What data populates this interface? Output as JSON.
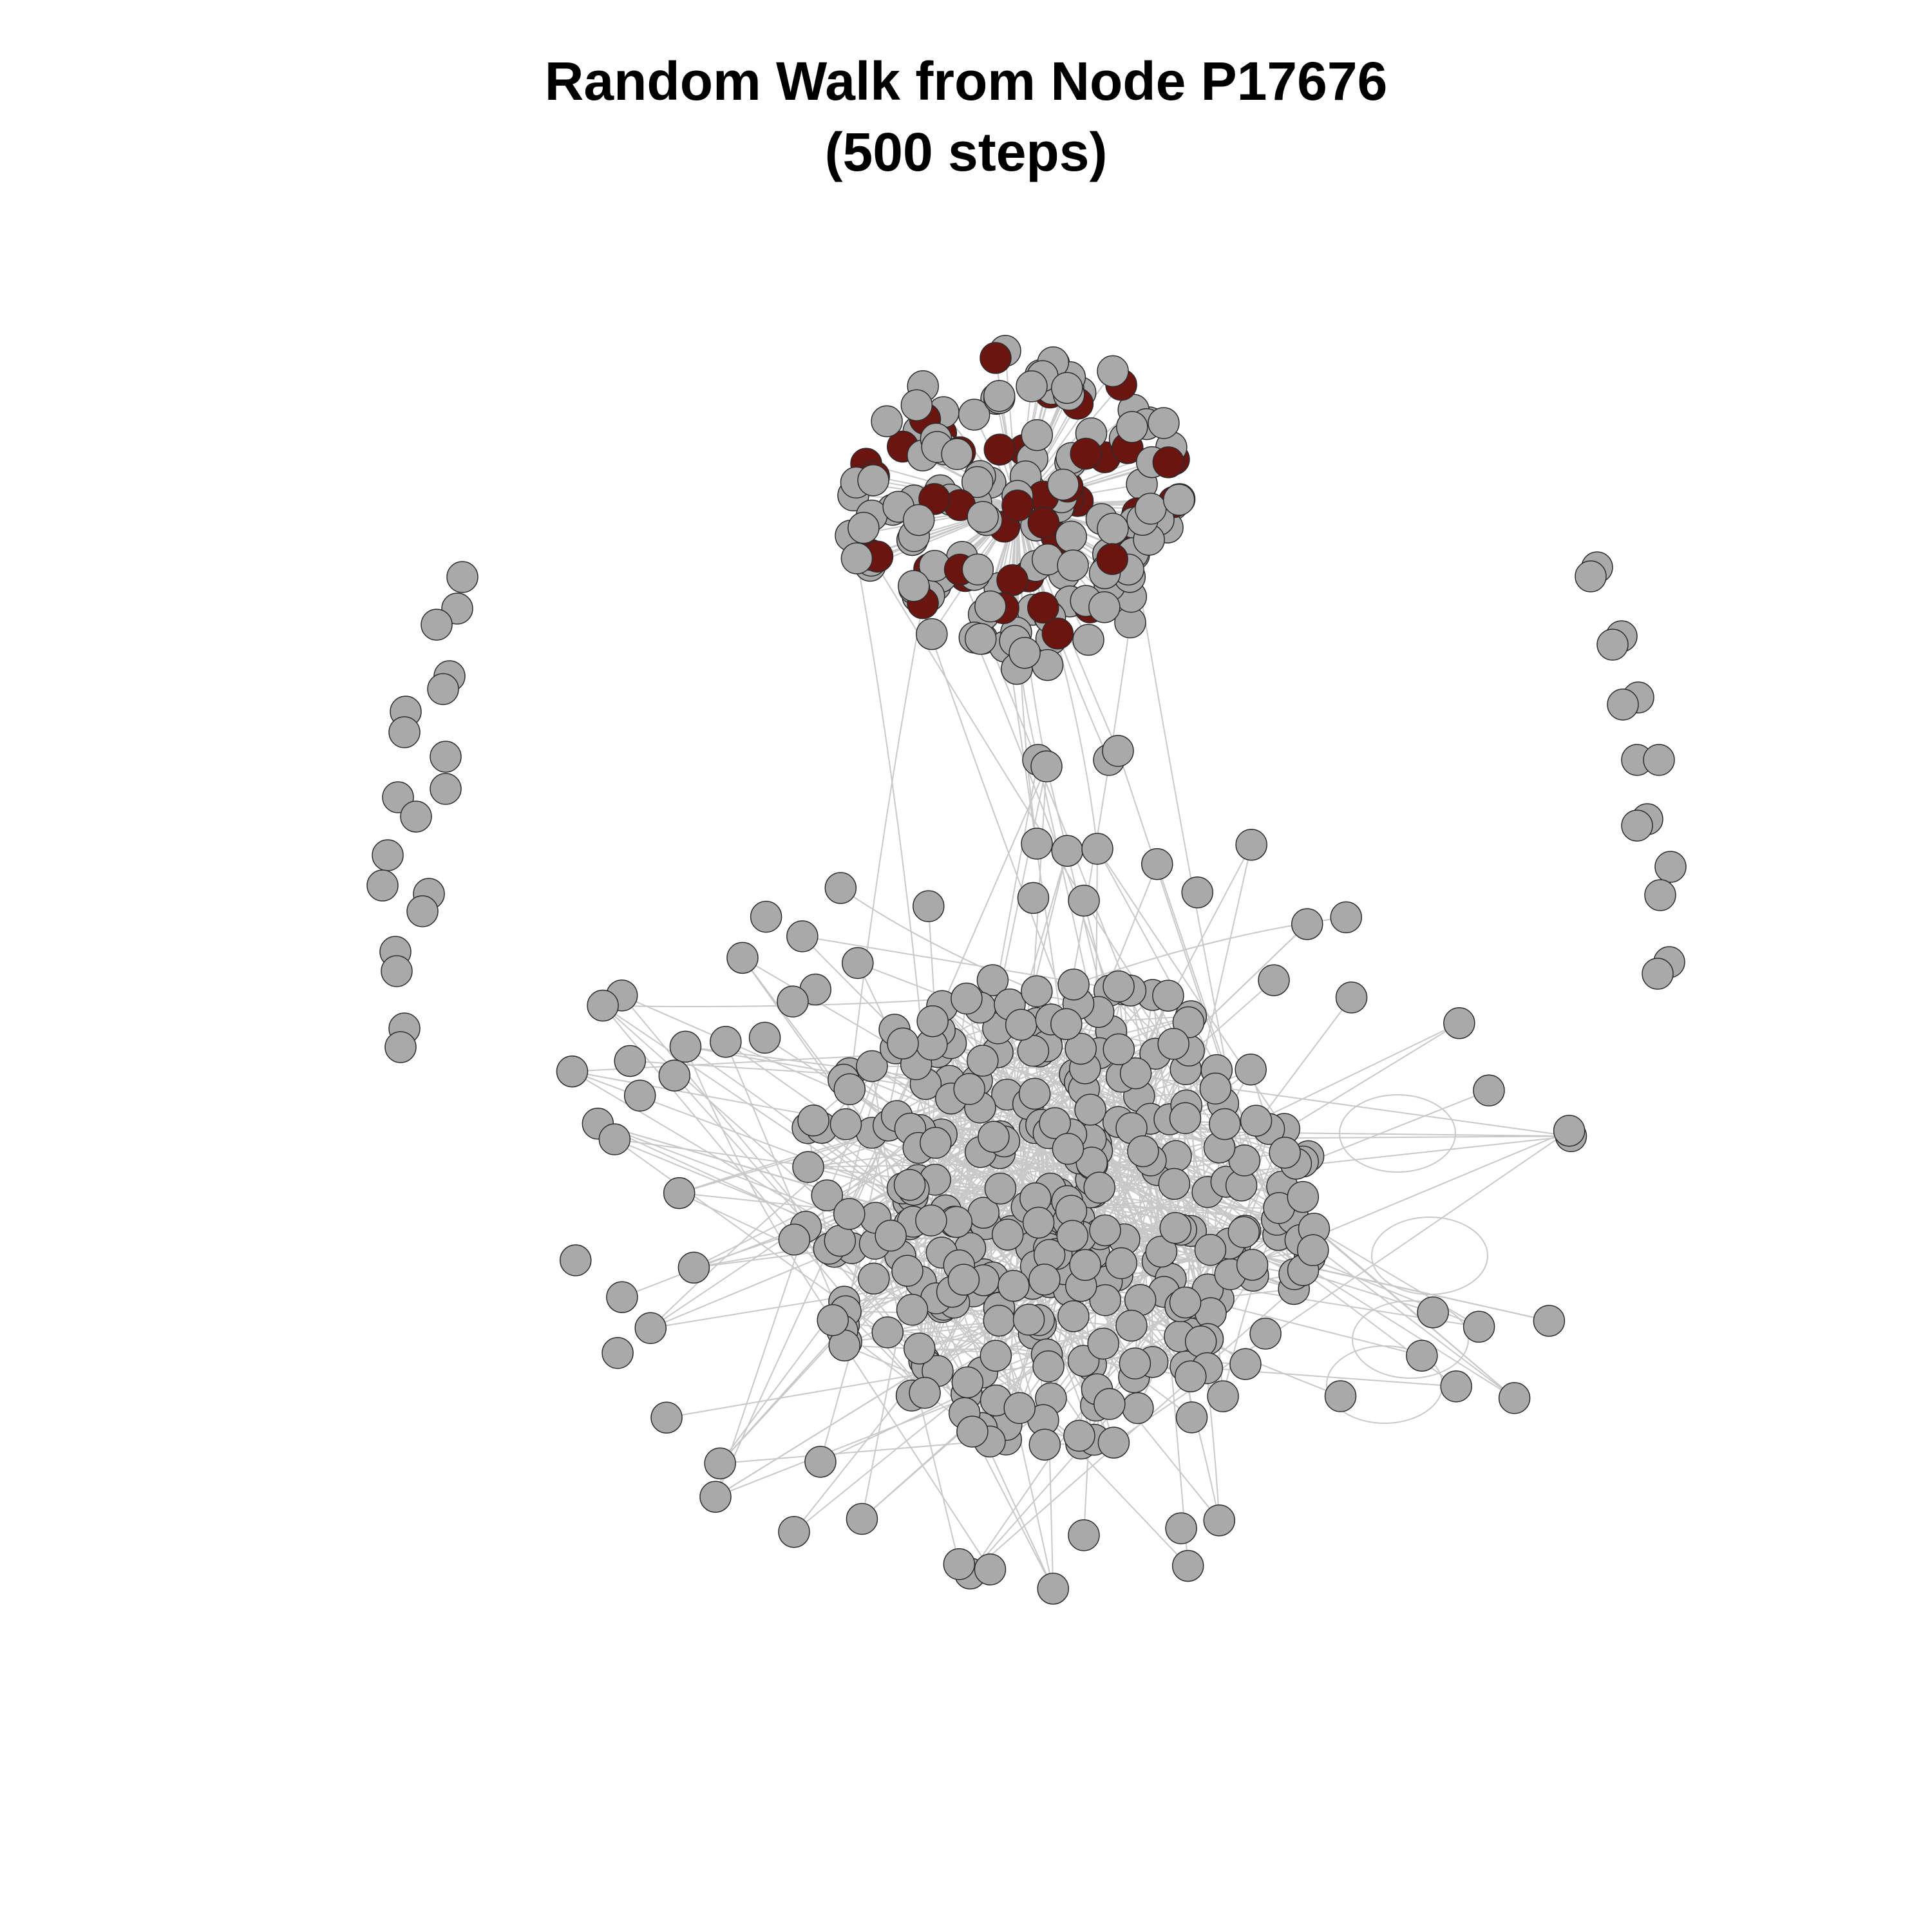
{
  "figure": {
    "title_line_1": "Random Walk from Node P17676",
    "title_line_2": "(500 steps)"
  },
  "network": {
    "start_node": "P17676",
    "steps": 500,
    "colors": {
      "visited_node": "#6b1510",
      "unvisited_node": "#a9a9a9",
      "node_border": "#2b2b2b",
      "edge": "#c8c8c8",
      "background": "#ffffff"
    }
  }
}
